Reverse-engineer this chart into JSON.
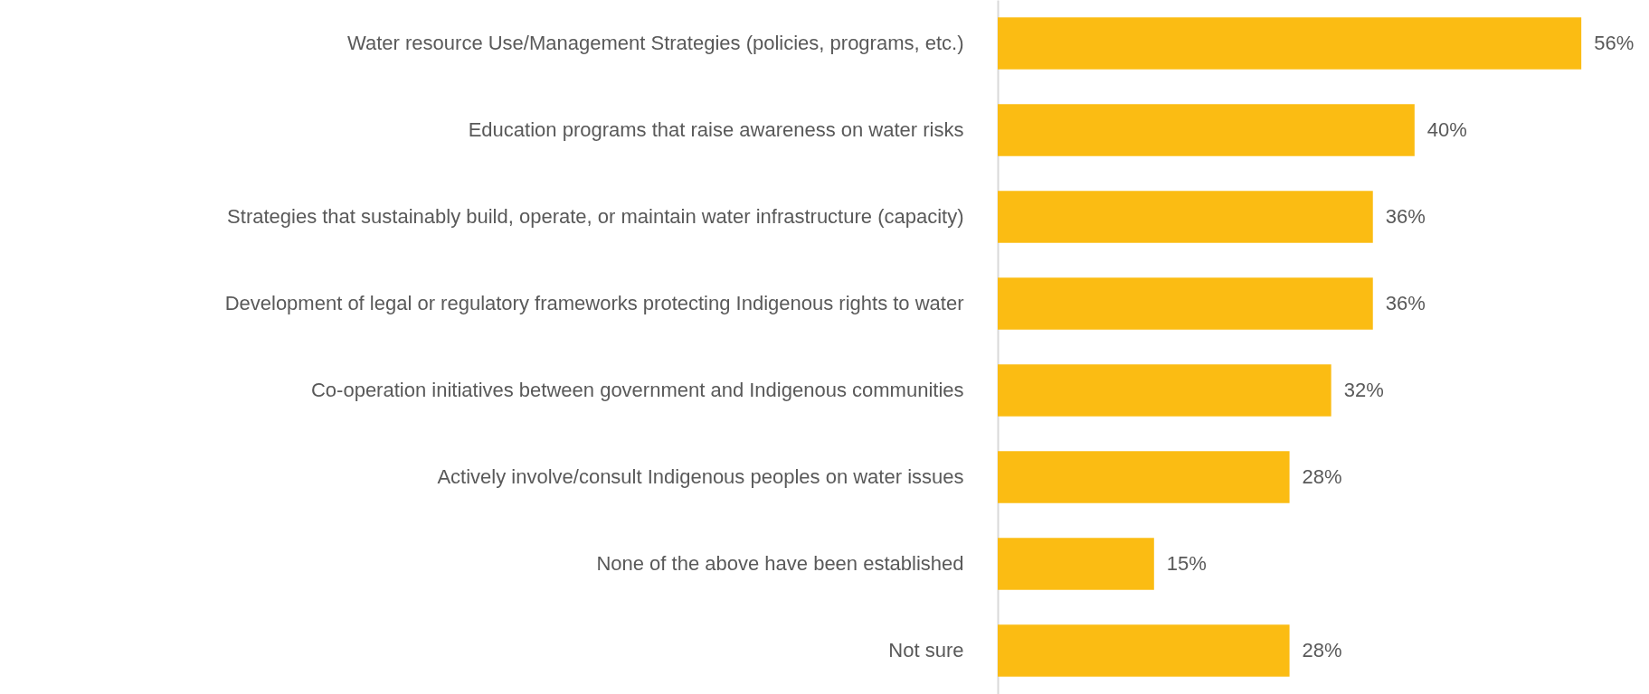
{
  "chart_data": {
    "type": "bar",
    "orientation": "horizontal",
    "categories": [
      "Water resource Use/Management Strategies (policies, programs, etc.)",
      "Education programs that raise awareness on water risks",
      "Strategies that sustainably build, operate, or maintain water infrastructure (capacity)",
      "Development of legal or regulatory frameworks protecting Indigenous rights to water",
      "Co-operation initiatives between government and Indigenous communities",
      "Actively involve/consult Indigenous peoples on water issues",
      "None of the above have been established",
      "Not sure"
    ],
    "values": [
      56,
      40,
      36,
      36,
      32,
      28,
      15,
      28
    ],
    "value_labels": [
      "56%",
      "40%",
      "36%",
      "36%",
      "32%",
      "28%",
      "15%",
      "28%"
    ],
    "color": "#fbbc13"
  }
}
